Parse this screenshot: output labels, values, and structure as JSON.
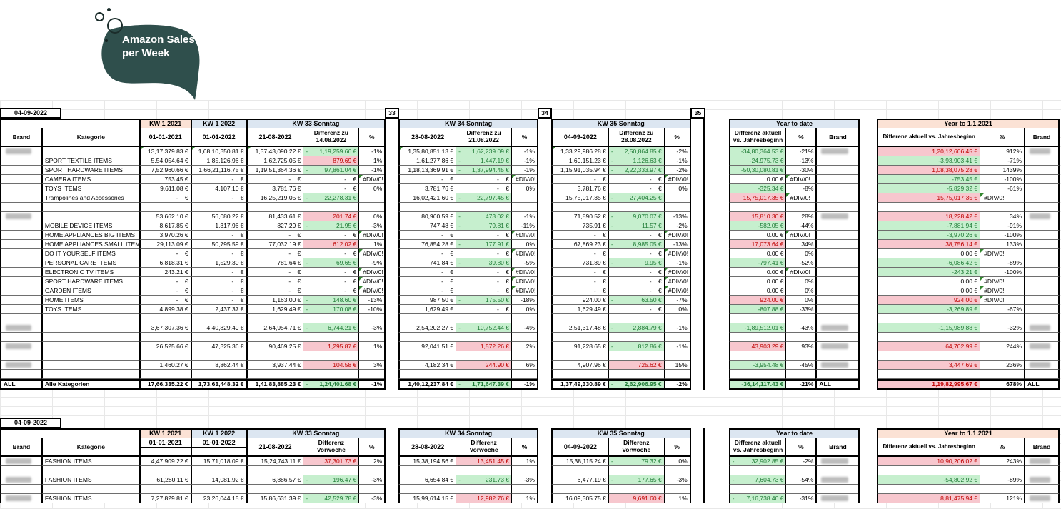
{
  "logo": {
    "text": "Amazon Sales per Week"
  },
  "colors": {
    "logo_teal": "#2F4F4C",
    "peach": "#FBE2D5",
    "blue": "#DCE6F1",
    "green_fill": "#C6EFCE",
    "green_text": "#1E7B35",
    "red_fill": "#F7C7CE",
    "red_text": "#C00000"
  },
  "labels": {
    "brand": "Brand",
    "kategorie": "Kategorie",
    "percent": "%",
    "all": "ALL",
    "alle_kategorien": "Alle Kategorien",
    "kw1_2021": "KW 1 2021",
    "kw1_2022": "KW 1 2022",
    "col_2021": "01-01-2021",
    "col_2022": "01-01-2022",
    "ytd_title": "Year to date",
    "ytd_diff": "Differenz aktuell|vs. Jahresbeginn",
    "y21_title": "Year to 1.1.2021",
    "y21_diff": "Differenz aktuell vs. Jahresbeginn"
  },
  "table1": {
    "date": "04-09-2022",
    "weeks": [
      "33",
      "34",
      "35"
    ],
    "kw": [
      {
        "title": "KW 33 Sonntag",
        "date": "21-08-2022",
        "diff_label": "Differenz zu|14.08.2022"
      },
      {
        "title": "KW 34 Sonntag",
        "date": "28-08-2022",
        "diff_label": "Differenz zu|21.08.2022"
      },
      {
        "title": "KW 35 Sonntag",
        "date": "04-09-2022",
        "diff_label": "Differenz zu|28.08.2022"
      }
    ],
    "rows": [
      {
        "t": "d",
        "bblur": 1,
        "tri": 1,
        "cat": "",
        "a": "13,17,379.83 €",
        "b": "1,68,10,350.81 €",
        "kw": [
          [
            "1,37,43,090.22 €",
            "1,19,259.66 €",
            "gd",
            "-1%"
          ],
          [
            "1,35,80,851.13 €",
            "1,62,239.09 €",
            "gd",
            "-1%"
          ],
          [
            "1,33,29,986.28 €",
            "2,50,864.85 €",
            "gd",
            "-2%"
          ]
        ],
        "yd": [
          "-34,80,364.53 €",
          "g",
          "-21%",
          "",
          1
        ],
        "y2": [
          "1,20,12,606.45 €",
          "r",
          "912%",
          "",
          1
        ]
      },
      {
        "t": "d",
        "cat": "SPORT TEXTILE ITEMS",
        "a": "5,54,054.64 €",
        "b": "1,85,126.96 €",
        "kw": [
          [
            "1,62,725.05 €",
            "879.69 €",
            "r",
            "1%"
          ],
          [
            "1,61,277.86 €",
            "1,447.19 €",
            "gd",
            "-1%"
          ],
          [
            "1,60,151.23 €",
            "1,126.63 €",
            "gd",
            "-1%"
          ]
        ],
        "yd": [
          "-24,975.73 €",
          "g",
          "-13%",
          "",
          0
        ],
        "y2": [
          "-3,93,903.41 €",
          "g",
          "-71%",
          "",
          0
        ]
      },
      {
        "t": "d",
        "cat": "SPORT HARDWARE ITEMS",
        "a": "7,52,960.66 €",
        "b": "1,66,21,116.75 €",
        "kw": [
          [
            "1,19,51,364.36 €",
            "97,861.04 €",
            "gd",
            "-1%"
          ],
          [
            "1,18,13,369.91 €",
            "1,37,994.45 €",
            "gd",
            "-1%"
          ],
          [
            "1,15,91,035.94 €",
            "2,22,333.97 €",
            "gd",
            "-2%"
          ]
        ],
        "yd": [
          "-50,30,080.81 €",
          "g",
          "-30%",
          "",
          0
        ],
        "y2": [
          "1,08,38,075.28 €",
          "r",
          "1439%",
          "",
          0
        ]
      },
      {
        "t": "d",
        "cat": "CAMERA ITEMS",
        "a": "753.45 €",
        "b": "-    €",
        "kw": [
          [
            "-    €",
            "-    €",
            "",
            "#DIV/0!"
          ],
          [
            "-    €",
            "-    €",
            "",
            "#DIV/0!"
          ],
          [
            "-    €",
            "-    €",
            "",
            "#DIV/0!"
          ]
        ],
        "yd": [
          "0.00 €",
          "",
          "#DIV/0!",
          "",
          0
        ],
        "y2": [
          "-753.45 €",
          "g",
          "-100%",
          "",
          0
        ]
      },
      {
        "t": "d",
        "cat": "TOYS ITEMS",
        "a": "9,611.08 €",
        "b": "4,107.10 €",
        "kw": [
          [
            "3,781.76 €",
            "-    €",
            "",
            "0%"
          ],
          [
            "3,781.76 €",
            "-    €",
            "",
            "0%"
          ],
          [
            "3,781.76 €",
            "-    €",
            "",
            "0%"
          ]
        ],
        "yd": [
          "-325.34 €",
          "g",
          "-8%",
          "",
          0
        ],
        "y2": [
          "-5,829.32 €",
          "g",
          "-61%",
          "",
          0
        ]
      },
      {
        "t": "d",
        "cat": "Trampolines and Accessories",
        "a": "-    €",
        "b": "-    €",
        "kw": [
          [
            "16,25,219.05 €",
            "22,278.31 €",
            "gd",
            ""
          ],
          [
            "16,02,421.60 €",
            "22,797.45 €",
            "gd",
            ""
          ],
          [
            "15,75,017.35 €",
            "27,404.25 €",
            "gd",
            ""
          ]
        ],
        "yd": [
          "15,75,017.35 €",
          "r",
          "#DIV/0!",
          "",
          0
        ],
        "y2": [
          "15,75,017.35 €",
          "r",
          "#DIV/0!",
          "",
          0
        ]
      },
      {
        "t": "b"
      },
      {
        "t": "d",
        "bblur": 1,
        "cat": "",
        "a": "53,662.10 €",
        "b": "56,080.22 €",
        "kw": [
          [
            "81,433.61 €",
            "201.74 €",
            "r",
            "0%"
          ],
          [
            "80,960.59 €",
            "473.02 €",
            "gd",
            "-1%"
          ],
          [
            "71,890.52 €",
            "9,070.07 €",
            "gd",
            "-13%"
          ]
        ],
        "yd": [
          "15,810.30 €",
          "r",
          "28%",
          "",
          1
        ],
        "y2": [
          "18,228.42 €",
          "r",
          "34%",
          "",
          1
        ]
      },
      {
        "t": "d",
        "cat": "MOBILE DEVICE ITEMS",
        "a": "8,617.85 €",
        "b": "1,317.96 €",
        "kw": [
          [
            "827.29 €",
            "21.95 €",
            "gd",
            "-3%"
          ],
          [
            "747.48 €",
            "79.81 €",
            "gd",
            "-11%"
          ],
          [
            "735.91 €",
            "11.57 €",
            "gd",
            "-2%"
          ]
        ],
        "yd": [
          "-582.05 €",
          "g",
          "-44%",
          "",
          0
        ],
        "y2": [
          "-7,881.94 €",
          "g",
          "-91%",
          "",
          0
        ]
      },
      {
        "t": "d",
        "cat": "HOME APPLIANCES BIG ITEMS",
        "a": "3,970.26 €",
        "b": "-    €",
        "kw": [
          [
            "-    €",
            "-    €",
            "",
            "#DIV/0!"
          ],
          [
            "-    €",
            "-    €",
            "",
            "#DIV/0!"
          ],
          [
            "-    €",
            "-    €",
            "",
            "#DIV/0!"
          ]
        ],
        "yd": [
          "0.00 €",
          "",
          "#DIV/0!",
          "",
          0
        ],
        "y2": [
          "-3,970.26 €",
          "g",
          "-100%",
          "",
          0
        ]
      },
      {
        "t": "d",
        "cat": "HOME APPLIANCES SMALL ITEMS",
        "a": "29,113.09 €",
        "b": "50,795.59 €",
        "kw": [
          [
            "77,032.19 €",
            "612.02 €",
            "r",
            "1%"
          ],
          [
            "76,854.28 €",
            "177.91 €",
            "gd",
            "0%"
          ],
          [
            "67,869.23 €",
            "8,985.05 €",
            "gd",
            "-13%"
          ]
        ],
        "yd": [
          "17,073.64 €",
          "r",
          "34%",
          "",
          0
        ],
        "y2": [
          "38,756.14 €",
          "r",
          "133%",
          "",
          0
        ]
      },
      {
        "t": "d",
        "cat": "DO IT YOURSELF ITEMS",
        "a": "-    €",
        "b": "-    €",
        "kw": [
          [
            "-    €",
            "-    €",
            "",
            "#DIV/0!"
          ],
          [
            "-    €",
            "-    €",
            "",
            "#DIV/0!"
          ],
          [
            "-    €",
            "-    €",
            "",
            "#DIV/0!"
          ]
        ],
        "yd": [
          "0.00 €",
          "",
          "0%",
          "",
          0
        ],
        "y2": [
          "0.00 €",
          "",
          "#DIV/0!",
          "",
          0
        ]
      },
      {
        "t": "d",
        "cat": "PERSONAL CARE ITEMS",
        "a": "6,818.31 €",
        "b": "1,529.30 €",
        "kw": [
          [
            "781.64 €",
            "69.65 €",
            "gd",
            "-9%"
          ],
          [
            "741.84 €",
            "39.80 €",
            "gd",
            "-5%"
          ],
          [
            "731.89 €",
            "9.95 €",
            "gd",
            "-1%"
          ]
        ],
        "yd": [
          "-797.41 €",
          "g",
          "-52%",
          "",
          0
        ],
        "y2": [
          "-6,086.42 €",
          "g",
          "-89%",
          "",
          0
        ]
      },
      {
        "t": "d",
        "cat": "ELECTRONIC TV ITEMS",
        "a": "243.21 €",
        "b": "-    €",
        "kw": [
          [
            "-    €",
            "-    €",
            "",
            "#DIV/0!"
          ],
          [
            "-    €",
            "-    €",
            "",
            "#DIV/0!"
          ],
          [
            "-    €",
            "-    €",
            "",
            "#DIV/0!"
          ]
        ],
        "yd": [
          "0.00 €",
          "",
          "#DIV/0!",
          "",
          0
        ],
        "y2": [
          "-243.21 €",
          "g",
          "-100%",
          "",
          0
        ]
      },
      {
        "t": "d",
        "cat": "SPORT HARDWARE ITEMS",
        "a": "-    €",
        "b": "-    €",
        "kw": [
          [
            "-    €",
            "-    €",
            "",
            "#DIV/0!"
          ],
          [
            "-    €",
            "-    €",
            "",
            "#DIV/0!"
          ],
          [
            "-    €",
            "-    €",
            "",
            "#DIV/0!"
          ]
        ],
        "yd": [
          "0.00 €",
          "",
          "0%",
          "",
          0
        ],
        "y2": [
          "0.00 €",
          "",
          "#DIV/0!",
          "",
          0
        ]
      },
      {
        "t": "d",
        "cat": "GARDEN ITEMS",
        "a": "-    €",
        "b": "-    €",
        "kw": [
          [
            "-    €",
            "-    €",
            "",
            "#DIV/0!"
          ],
          [
            "-    €",
            "-    €",
            "",
            "#DIV/0!"
          ],
          [
            "-    €",
            "-    €",
            "",
            "#DIV/0!"
          ]
        ],
        "yd": [
          "0.00 €",
          "",
          "0%",
          "",
          0
        ],
        "y2": [
          "0.00 €",
          "",
          "#DIV/0!",
          "",
          0
        ]
      },
      {
        "t": "d",
        "cat": "HOME ITEMS",
        "a": "-    €",
        "b": "-    €",
        "kw": [
          [
            "1,163.00 €",
            "148.60 €",
            "gd",
            "-13%"
          ],
          [
            "987.50 €",
            "175.50 €",
            "gd",
            "-18%"
          ],
          [
            "924.00 €",
            "63.50 €",
            "gd",
            "-7%"
          ]
        ],
        "yd": [
          "924.00 €",
          "r",
          "0%",
          "",
          0
        ],
        "y2": [
          "924.00 €",
          "r",
          "#DIV/0!",
          "",
          0
        ]
      },
      {
        "t": "d",
        "cat": "TOYS ITEMS",
        "a": "4,899.38 €",
        "b": "2,437.37 €",
        "kw": [
          [
            "1,629.49 €",
            "170.08 €",
            "gd",
            "-10%"
          ],
          [
            "1,629.49 €",
            "-    €",
            "",
            "0%"
          ],
          [
            "1,629.49 €",
            "-    €",
            "",
            "0%"
          ]
        ],
        "yd": [
          "-807.88 €",
          "g",
          "-33%",
          "",
          0
        ],
        "y2": [
          "-3,269.89 €",
          "g",
          "-67%",
          "",
          0
        ]
      },
      {
        "t": "b"
      },
      {
        "t": "d",
        "bblur": 1,
        "cat": "",
        "a": "3,67,307.36 €",
        "b": "4,40,829.49 €",
        "kw": [
          [
            "2,64,954.71 €",
            "6,744.21 €",
            "gd",
            "-3%"
          ],
          [
            "2,54,202.27 €",
            "10,752.44 €",
            "gd",
            "-4%"
          ],
          [
            "2,51,317.48 €",
            "2,884.79 €",
            "gd",
            "-1%"
          ]
        ],
        "yd": [
          "-1,89,512.01 €",
          "g",
          "-43%",
          "",
          1
        ],
        "y2": [
          "-1,15,989.88 €",
          "g",
          "-32%",
          "",
          1
        ]
      },
      {
        "t": "b"
      },
      {
        "t": "d",
        "bblur": 1,
        "cat": "",
        "a": "26,525.66 €",
        "b": "47,325.36 €",
        "kw": [
          [
            "90,469.25 €",
            "1,295.87 €",
            "r",
            "1%"
          ],
          [
            "92,041.51 €",
            "1,572.26 €",
            "r",
            "2%"
          ],
          [
            "91,228.65 €",
            "812.86 €",
            "gd",
            "-1%"
          ]
        ],
        "yd": [
          "43,903.29 €",
          "r",
          "93%",
          "",
          1
        ],
        "y2": [
          "64,702.99 €",
          "r",
          "244%",
          "",
          1
        ]
      },
      {
        "t": "b"
      },
      {
        "t": "d",
        "bblur": 1,
        "cat": "",
        "a": "1,460.27 €",
        "b": "8,862.44 €",
        "kw": [
          [
            "3,937.44 €",
            "104.58 €",
            "r",
            "3%"
          ],
          [
            "4,182.34 €",
            "244.90 €",
            "r",
            "6%"
          ],
          [
            "4,907.96 €",
            "725.62 €",
            "r",
            "15%"
          ]
        ],
        "yd": [
          "-3,954.48 €",
          "g",
          "-45%",
          "",
          1
        ],
        "y2": [
          "3,447.69 €",
          "r",
          "236%",
          "",
          1
        ]
      },
      {
        "t": "b"
      },
      {
        "t": "tot",
        "brand": "ALL",
        "cat": "Alle Kategorien",
        "a": "17,66,335.22 €",
        "b": "1,73,63,448.32 €",
        "kw": [
          [
            "1,41,83,885.23 €",
            "1,24,401.68 €",
            "gd",
            "-1%"
          ],
          [
            "1,40,12,237.84 €",
            "1,71,647.39 €",
            "gd",
            "-1%"
          ],
          [
            "1,37,49,330.89 €",
            "2,62,906.95 €",
            "gd",
            "-2%"
          ]
        ],
        "yd": [
          "-36,14,117.43 €",
          "g",
          "-21%",
          "ALL",
          0
        ],
        "y2": [
          "1,19,82,995.67 €",
          "r",
          "678%",
          "ALL",
          0
        ]
      }
    ]
  },
  "table2": {
    "date": "04-09-2022",
    "split_dates": true,
    "kw": [
      {
        "title": "KW 33 Sonntag",
        "date": "21-08-2022",
        "diff_label": "Differenz|Vorwoche"
      },
      {
        "title": "KW 34 Sonntag",
        "date": "28-08-2022",
        "diff_label": "Differenz|Vorwoche"
      },
      {
        "title": "KW 35 Sonntag",
        "date": "04-09-2022",
        "diff_label": "Differenz|Vorwoche"
      }
    ],
    "rows": [
      {
        "t": "d",
        "bblur": 1,
        "cat": "FASHION ITEMS",
        "a": "4,47,909.22 €",
        "b": "15,71,018.09 €",
        "kw": [
          [
            "15,24,743.11 €",
            "37,301.73 €",
            "r",
            "2%"
          ],
          [
            "15,38,194.56 €",
            "13,451.45 €",
            "r",
            "1%"
          ],
          [
            "15,38,115.24 €",
            "79.32 €",
            "gd",
            "0%"
          ]
        ],
        "yd": [
          "32,902.85 €",
          "gd",
          "-2%",
          "",
          1
        ],
        "y2": [
          "10,90,206.02 €",
          "r",
          "243%",
          "",
          1
        ]
      },
      {
        "t": "b"
      },
      {
        "t": "d",
        "bblur": 1,
        "cat": "FASHION ITEMS",
        "a": "61,280.11 €",
        "b": "14,081.92 €",
        "kw": [
          [
            "6,886.57 €",
            "196.47 €",
            "gd",
            "-3%"
          ],
          [
            "6,654.84 €",
            "231.73 €",
            "gd",
            "-3%"
          ],
          [
            "6,477.19 €",
            "177.65 €",
            "gd",
            "-3%"
          ]
        ],
        "yd": [
          "7,604.73 €",
          "gd",
          "-54%",
          "",
          1
        ],
        "y2": [
          "-54,802.92 €",
          "g",
          "-89%",
          "",
          1
        ]
      },
      {
        "t": "b"
      },
      {
        "t": "d",
        "bblur": 1,
        "cat": "FASHION ITEMS",
        "a": "7,27,829.81 €",
        "b": "23,26,044.15 €",
        "kw": [
          [
            "15,86,631.39 €",
            "42,529.78 €",
            "gd",
            "-3%"
          ],
          [
            "15,99,614.15 €",
            "12,982.76 €",
            "r",
            "1%"
          ],
          [
            "16,09,305.75 €",
            "9,691.60 €",
            "r",
            "1%"
          ]
        ],
        "yd": [
          "7,16,738.40 €",
          "gd",
          "-31%",
          "",
          1
        ],
        "y2": [
          "8,81,475.94 €",
          "r",
          "121%",
          "",
          1
        ]
      }
    ]
  }
}
